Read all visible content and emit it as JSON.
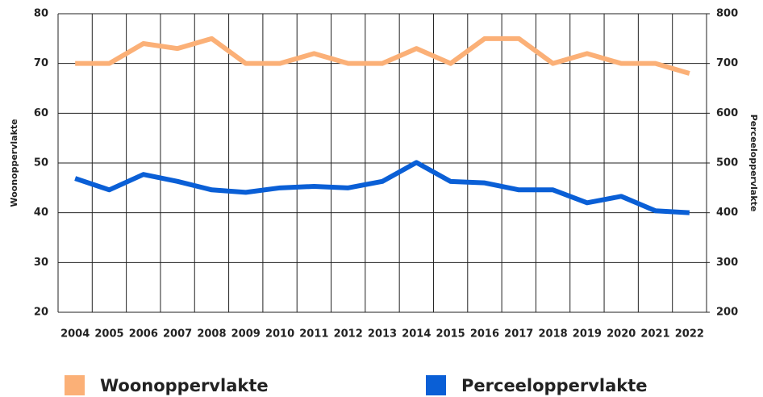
{
  "chart_data": {
    "type": "line",
    "categories": [
      "2004",
      "2005",
      "2006",
      "2007",
      "2008",
      "2009",
      "2010",
      "2011",
      "2012",
      "2013",
      "2014",
      "2015",
      "2016",
      "2017",
      "2018",
      "2019",
      "2020",
      "2021",
      "2022"
    ],
    "series": [
      {
        "name": "Woonoppervlakte",
        "color": "#fbb077",
        "values": [
          70,
          70,
          74,
          73,
          75,
          70,
          70,
          72,
          70,
          70,
          73,
          70,
          75,
          75,
          70,
          72,
          70,
          70,
          68
        ]
      },
      {
        "name": "Perceeloppervlakte",
        "color": "#0a5fd6",
        "axis": "y2",
        "values": [
          469,
          446,
          477,
          463,
          446,
          441,
          450,
          453,
          450,
          463,
          501,
          463,
          460,
          446,
          446,
          420,
          433,
          404,
          400
        ]
      }
    ],
    "ylabel": "Woonoppervlakte",
    "y2label": "Perceeloppervlakte",
    "ylim": [
      20,
      80
    ],
    "yticks": [
      20,
      30,
      40,
      50,
      60,
      70,
      80
    ],
    "y2lim": [
      200,
      800
    ],
    "y2ticks": [
      200,
      300,
      400,
      500,
      600,
      700,
      800
    ],
    "grid": true,
    "legend": "bottom"
  }
}
